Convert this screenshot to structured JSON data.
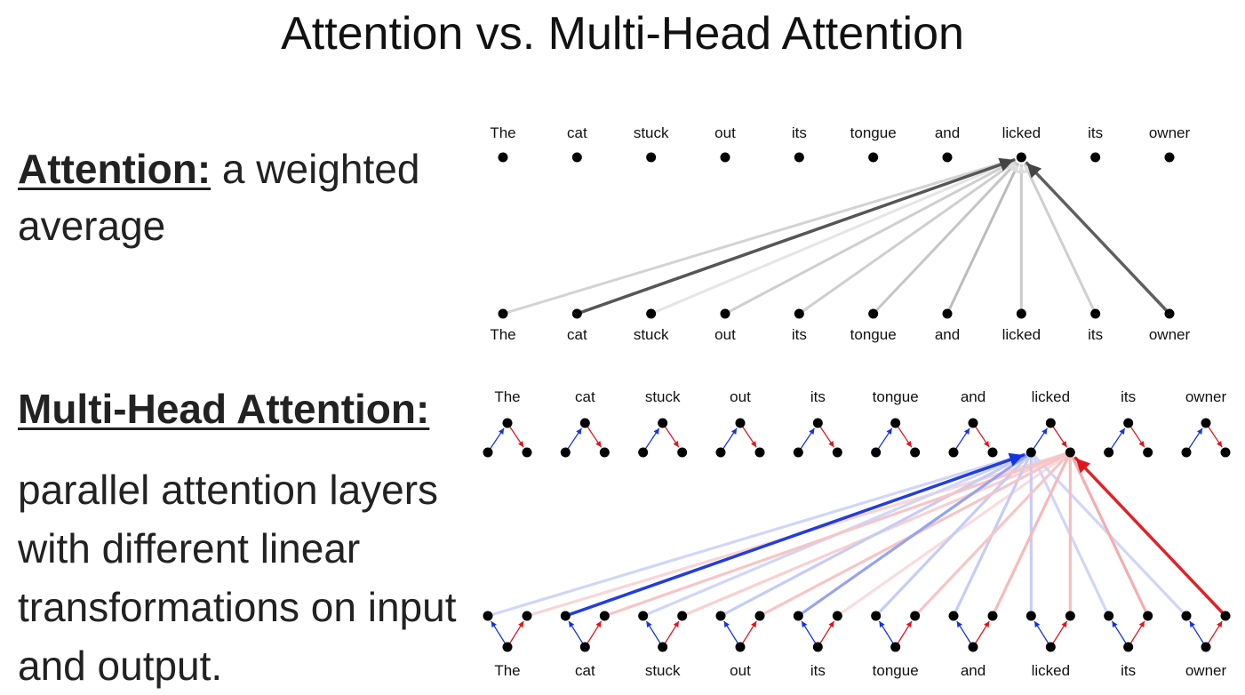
{
  "title": "Attention vs. Multi-Head Attention",
  "attention": {
    "term": "Attention:",
    "definition": " a weighted average"
  },
  "multihead": {
    "term": "Multi-Head Attention:",
    "definition": "parallel attention layers with different linear transformations on input  and output."
  },
  "tokens": [
    "The",
    "cat",
    "stuck",
    "out",
    "its",
    "tongue",
    "and",
    "licked",
    "its",
    "owner"
  ],
  "attention_diagram": {
    "query_index": 7,
    "weights": [
      0.18,
      0.85,
      0.08,
      0.2,
      0.2,
      0.25,
      0.3,
      0.22,
      0.2,
      0.8
    ]
  },
  "multihead_diagram": {
    "query_index": 7,
    "head_colors": [
      "#1533e0",
      "#e0151c"
    ],
    "head1_weights": [
      0.2,
      0.95,
      0.2,
      0.25,
      0.45,
      0.25,
      0.25,
      0.25,
      0.2,
      0.2
    ],
    "head2_weights": [
      0.18,
      0.25,
      0.2,
      0.25,
      0.15,
      0.25,
      0.3,
      0.28,
      0.35,
      0.95
    ]
  }
}
